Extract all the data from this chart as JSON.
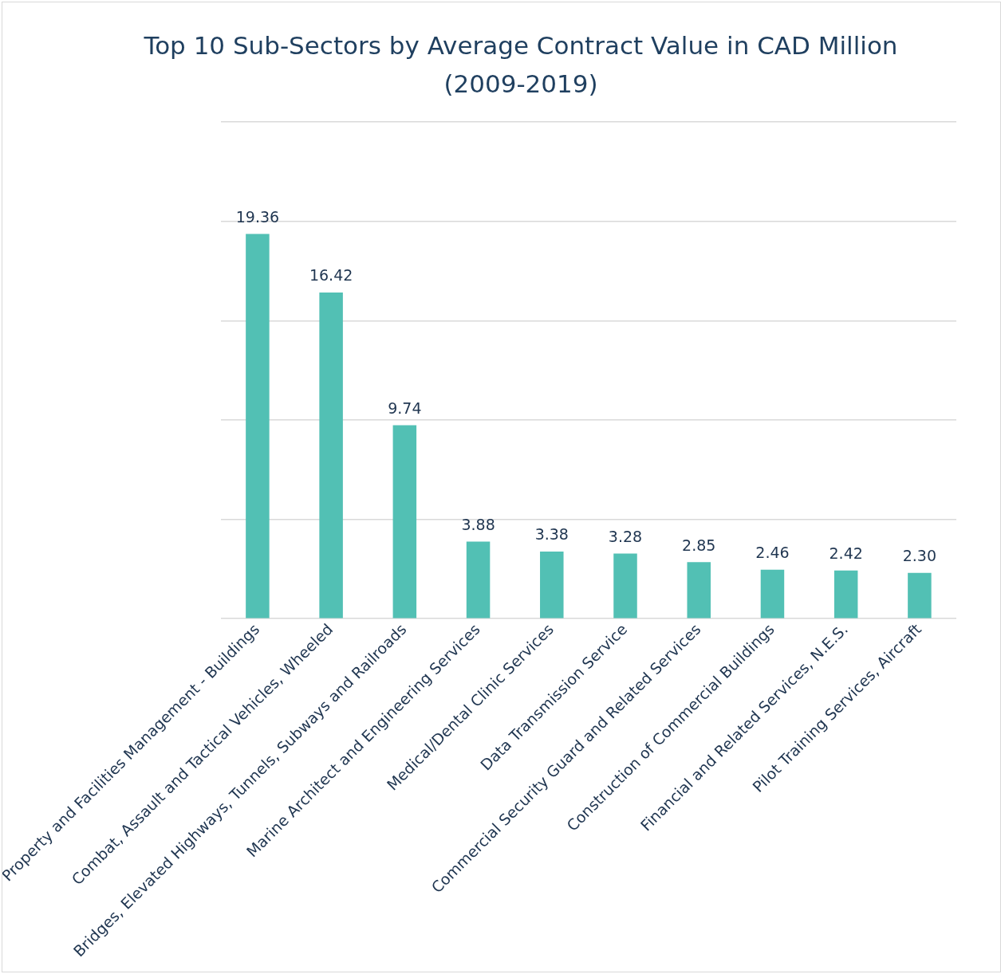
{
  "chart_data": {
    "type": "bar",
    "title": "Top 10 Sub-Sectors by Average Contract Value in CAD Million (2009-2019)",
    "categories": [
      "Property and Facilities Management - Buildings",
      "Combat, Assault and Tactical Vehicles, Wheeled",
      "Bridges, Elevated Highways, Tunnels, Subways and Railroads",
      "Marine Architect and Engineering Services",
      "Medical/Dental Clinic Services",
      "Data Transmission Service",
      "Commercial Security Guard and Related Services",
      "Construction of Commercial Buildings",
      "Financial and Related Services, N.E.S.",
      "Pilot Training Services, Aircraft"
    ],
    "values": [
      19.36,
      16.42,
      9.74,
      3.88,
      3.38,
      3.28,
      2.85,
      2.46,
      2.42,
      2.3
    ],
    "value_labels": [
      "19.36",
      "16.42",
      "9.74",
      "3.88",
      "3.38",
      "3.28",
      "2.85",
      "2.46",
      "2.42",
      "2.30"
    ],
    "color": "#52c0b4",
    "ylim": [
      0,
      25
    ],
    "yticks": [
      {
        "value": 0,
        "label": null
      },
      {
        "value": 5,
        "label": null
      },
      {
        "value": 10,
        "label": null
      },
      {
        "value": 15,
        "label": null
      },
      {
        "value": 20,
        "label": null
      },
      {
        "value": 25,
        "label": null
      }
    ],
    "grid": "y",
    "tick_labels": "x",
    "legend": false
  }
}
